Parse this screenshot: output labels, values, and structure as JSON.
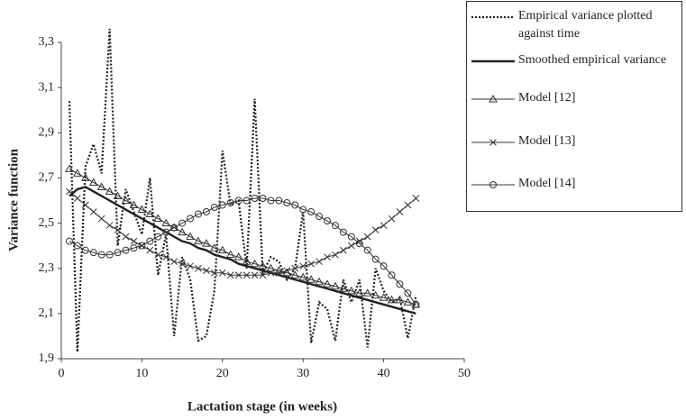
{
  "chart_data": {
    "type": "line",
    "x_label": "Lactation stage (in weeks)",
    "y_label": "Variance function",
    "x": [
      1,
      2,
      3,
      4,
      5,
      6,
      7,
      8,
      9,
      10,
      11,
      12,
      13,
      14,
      15,
      16,
      17,
      18,
      19,
      20,
      21,
      22,
      23,
      24,
      25,
      26,
      27,
      28,
      29,
      30,
      31,
      32,
      33,
      34,
      35,
      36,
      37,
      38,
      39,
      40,
      41,
      42,
      43,
      44
    ],
    "series": [
      {
        "name": "Empirical variance plotted against time",
        "color": "#222222",
        "style": "dotted",
        "marker": "none",
        "values": [
          3.04,
          1.93,
          2.75,
          2.85,
          2.72,
          3.36,
          2.4,
          2.65,
          2.55,
          2.45,
          2.7,
          2.27,
          2.45,
          2.0,
          2.35,
          2.25,
          1.98,
          2.0,
          2.2,
          2.82,
          2.58,
          2.6,
          2.3,
          3.05,
          2.28,
          2.35,
          2.33,
          2.25,
          2.3,
          2.55,
          1.97,
          2.15,
          2.12,
          1.98,
          2.25,
          2.15,
          2.25,
          1.95,
          2.3,
          2.2,
          2.15,
          2.17,
          1.99,
          2.18
        ]
      },
      {
        "name": "Smoothed empirical variance",
        "color": "#222222",
        "style": "thick",
        "marker": "none",
        "values": [
          2.62,
          2.65,
          2.66,
          2.64,
          2.62,
          2.6,
          2.58,
          2.56,
          2.54,
          2.52,
          2.5,
          2.48,
          2.46,
          2.44,
          2.42,
          2.41,
          2.39,
          2.38,
          2.36,
          2.35,
          2.34,
          2.32,
          2.31,
          2.3,
          2.29,
          2.28,
          2.27,
          2.26,
          2.25,
          2.24,
          2.23,
          2.22,
          2.21,
          2.2,
          2.19,
          2.18,
          2.17,
          2.16,
          2.15,
          2.14,
          2.13,
          2.12,
          2.11,
          2.1
        ]
      },
      {
        "name": "Model [12]",
        "color": "#333333",
        "style": "solid",
        "marker": "triangle",
        "values": [
          2.74,
          2.72,
          2.7,
          2.68,
          2.66,
          2.64,
          2.62,
          2.6,
          2.58,
          2.56,
          2.54,
          2.52,
          2.5,
          2.48,
          2.46,
          2.44,
          2.42,
          2.41,
          2.39,
          2.38,
          2.36,
          2.35,
          2.33,
          2.32,
          2.31,
          2.3,
          2.29,
          2.28,
          2.27,
          2.26,
          2.25,
          2.24,
          2.23,
          2.22,
          2.21,
          2.2,
          2.19,
          2.19,
          2.18,
          2.17,
          2.16,
          2.16,
          2.15,
          2.14
        ]
      },
      {
        "name": "Model [13]",
        "color": "#333333",
        "style": "solid",
        "marker": "cross",
        "values": [
          2.64,
          2.61,
          2.58,
          2.55,
          2.52,
          2.49,
          2.47,
          2.44,
          2.42,
          2.4,
          2.38,
          2.36,
          2.35,
          2.33,
          2.32,
          2.31,
          2.3,
          2.29,
          2.28,
          2.28,
          2.27,
          2.27,
          2.27,
          2.27,
          2.27,
          2.28,
          2.28,
          2.29,
          2.3,
          2.31,
          2.32,
          2.33,
          2.35,
          2.36,
          2.38,
          2.4,
          2.42,
          2.44,
          2.47,
          2.49,
          2.52,
          2.55,
          2.58,
          2.61
        ]
      },
      {
        "name": "Model [14]",
        "color": "#333333",
        "style": "solid",
        "marker": "circle",
        "values": [
          2.42,
          2.4,
          2.38,
          2.37,
          2.36,
          2.36,
          2.37,
          2.38,
          2.39,
          2.4,
          2.42,
          2.44,
          2.46,
          2.48,
          2.5,
          2.52,
          2.54,
          2.55,
          2.57,
          2.58,
          2.59,
          2.6,
          2.6,
          2.61,
          2.61,
          2.6,
          2.6,
          2.59,
          2.58,
          2.56,
          2.55,
          2.53,
          2.51,
          2.49,
          2.46,
          2.44,
          2.41,
          2.38,
          2.34,
          2.31,
          2.27,
          2.23,
          2.19,
          2.14
        ]
      }
    ],
    "xlim": [
      0,
      50
    ],
    "xticks": [
      0,
      10,
      20,
      30,
      40,
      50
    ],
    "ylim": [
      1.9,
      3.3
    ],
    "yticks": [
      {
        "value": 1.9,
        "label": "1,9"
      },
      {
        "value": 2.1,
        "label": "2,1"
      },
      {
        "value": 2.3,
        "label": "2,3"
      },
      {
        "value": 2.5,
        "label": "2,5"
      },
      {
        "value": 2.7,
        "label": "2,7"
      },
      {
        "value": 2.9,
        "label": "2,9"
      },
      {
        "value": 3.1,
        "label": "3,1"
      },
      {
        "value": 3.3,
        "label": "3,3"
      }
    ],
    "grid": false,
    "legend": "right"
  }
}
